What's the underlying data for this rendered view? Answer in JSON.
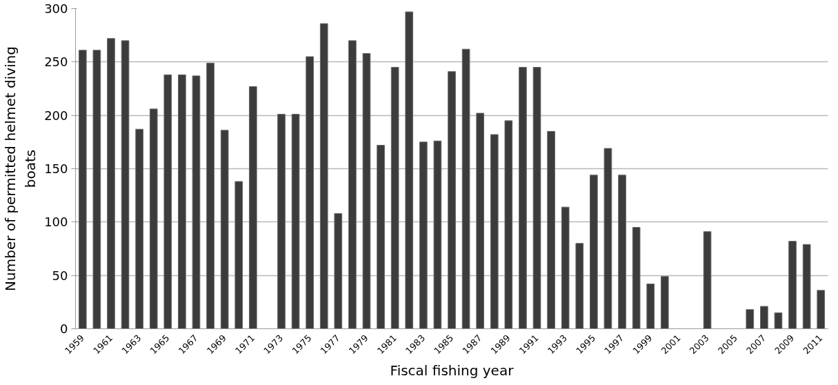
{
  "chart_data": {
    "type": "bar",
    "xlabel": "Fiscal fishing year",
    "ylabel": "Number of permitted helmet diving boats",
    "categories": [
      "1959",
      null,
      "1961",
      null,
      "1963",
      null,
      "1965",
      null,
      "1967",
      null,
      "1969",
      null,
      "1971",
      null,
      "1973",
      null,
      "1975",
      null,
      "1977",
      null,
      "1979",
      null,
      "1981",
      null,
      "1983",
      null,
      "1985",
      null,
      "1987",
      null,
      "1989",
      null,
      "1991",
      null,
      "1993",
      null,
      "1995",
      null,
      "1997",
      null,
      "1999",
      null,
      "2001",
      null,
      "2003",
      null,
      "2005",
      null,
      "2007",
      null,
      "2009",
      null,
      "2011"
    ],
    "values": [
      261,
      261,
      272,
      270,
      187,
      206,
      238,
      238,
      237,
      249,
      186,
      138,
      227,
      null,
      201,
      201,
      255,
      286,
      108,
      270,
      258,
      172,
      245,
      297,
      175,
      176,
      241,
      262,
      202,
      182,
      195,
      245,
      245,
      185,
      114,
      80,
      144,
      169,
      144,
      95,
      42,
      49,
      null,
      null,
      91,
      null,
      null,
      18,
      21,
      15,
      82,
      79,
      36
    ],
    "color": "#3c3c3c",
    "ylim": [
      0,
      300
    ],
    "yticks": [
      0,
      50,
      100,
      150,
      200,
      250,
      300
    ],
    "grid": "y"
  }
}
